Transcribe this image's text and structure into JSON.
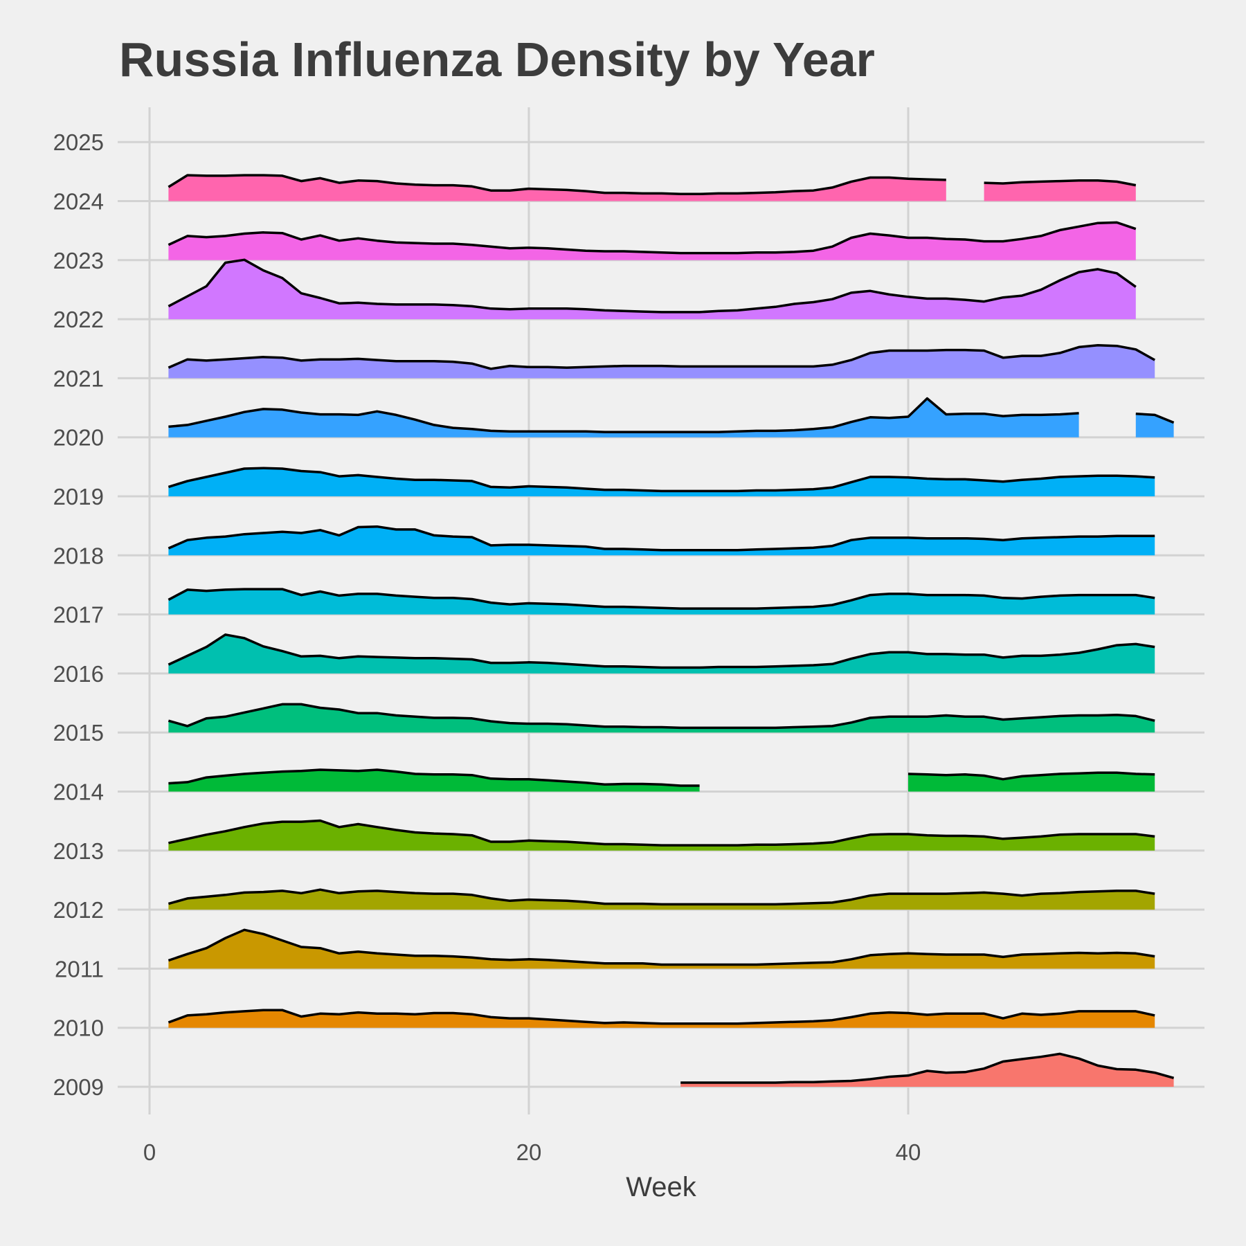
{
  "chart_data": {
    "type": "area",
    "title": "Russia Influenza Density by Year",
    "xlabel": "Week",
    "ylabel": "",
    "xlim": [
      -1,
      56.5
    ],
    "x_ticks": [
      "0",
      "20",
      "40"
    ],
    "x_tick_values": [
      0,
      20,
      40
    ],
    "y_categories": [
      "2009",
      "2010",
      "2011",
      "2012",
      "2013",
      "2014",
      "2015",
      "2016",
      "2017",
      "2018",
      "2019",
      "2020",
      "2021",
      "2022",
      "2023",
      "2024",
      "2025"
    ],
    "grid": true,
    "legend": "none",
    "series": [
      {
        "name": "2009",
        "color": "#F8766D",
        "start": 28,
        "values": [
          0.07,
          0.07,
          0.07,
          0.07,
          0.07,
          0.07,
          0.08,
          0.08,
          0.09,
          0.1,
          0.13,
          0.17,
          0.19,
          0.27,
          0.24,
          0.25,
          0.31,
          0.43,
          0.47,
          0.51,
          0.56,
          0.48,
          0.36,
          0.3,
          0.29,
          0.24,
          0.15
        ]
      },
      {
        "name": "2010",
        "color": "#E58700",
        "start": 1,
        "values": [
          0.09,
          0.21,
          0.23,
          0.26,
          0.28,
          0.3,
          0.3,
          0.19,
          0.24,
          0.23,
          0.26,
          0.24,
          0.24,
          0.23,
          0.25,
          0.25,
          0.23,
          0.18,
          0.16,
          0.16,
          0.14,
          0.12,
          0.1,
          0.08,
          0.09,
          0.08,
          0.07,
          0.07,
          0.07,
          0.07,
          0.07,
          0.08,
          0.09,
          0.1,
          0.11,
          0.13,
          0.18,
          0.24,
          0.26,
          0.25,
          0.22,
          0.24,
          0.24,
          0.24,
          0.16,
          0.24,
          0.22,
          0.24,
          0.28,
          0.28,
          0.28,
          0.28,
          0.21
        ]
      },
      {
        "name": "2011",
        "color": "#C99800",
        "start": 1,
        "values": [
          0.14,
          0.25,
          0.35,
          0.52,
          0.66,
          0.59,
          0.48,
          0.37,
          0.35,
          0.26,
          0.29,
          0.26,
          0.24,
          0.22,
          0.22,
          0.21,
          0.19,
          0.16,
          0.15,
          0.16,
          0.15,
          0.13,
          0.11,
          0.09,
          0.09,
          0.09,
          0.07,
          0.07,
          0.07,
          0.07,
          0.07,
          0.07,
          0.08,
          0.09,
          0.1,
          0.11,
          0.16,
          0.23,
          0.25,
          0.26,
          0.25,
          0.24,
          0.24,
          0.24,
          0.2,
          0.24,
          0.25,
          0.26,
          0.27,
          0.26,
          0.27,
          0.26,
          0.21
        ]
      },
      {
        "name": "2012",
        "color": "#A3A500",
        "start": 1,
        "values": [
          0.1,
          0.19,
          0.22,
          0.25,
          0.29,
          0.3,
          0.32,
          0.28,
          0.34,
          0.28,
          0.31,
          0.32,
          0.3,
          0.28,
          0.27,
          0.27,
          0.25,
          0.19,
          0.15,
          0.17,
          0.16,
          0.15,
          0.13,
          0.1,
          0.1,
          0.1,
          0.09,
          0.09,
          0.09,
          0.09,
          0.09,
          0.09,
          0.09,
          0.1,
          0.11,
          0.12,
          0.17,
          0.24,
          0.27,
          0.27,
          0.27,
          0.27,
          0.28,
          0.29,
          0.27,
          0.24,
          0.27,
          0.28,
          0.3,
          0.31,
          0.32,
          0.32,
          0.27
        ]
      },
      {
        "name": "2013",
        "color": "#6BB100",
        "start": 1,
        "values": [
          0.13,
          0.2,
          0.27,
          0.33,
          0.4,
          0.46,
          0.49,
          0.49,
          0.51,
          0.4,
          0.45,
          0.4,
          0.35,
          0.31,
          0.29,
          0.28,
          0.26,
          0.15,
          0.15,
          0.17,
          0.16,
          0.15,
          0.13,
          0.11,
          0.11,
          0.1,
          0.09,
          0.09,
          0.09,
          0.09,
          0.09,
          0.1,
          0.1,
          0.11,
          0.12,
          0.14,
          0.21,
          0.27,
          0.28,
          0.28,
          0.26,
          0.25,
          0.25,
          0.24,
          0.2,
          0.22,
          0.24,
          0.27,
          0.28,
          0.28,
          0.28,
          0.28,
          0.24
        ]
      },
      {
        "name": "2014",
        "color": "#00BA38",
        "start": 1,
        "values": [
          0.14,
          0.16,
          0.24,
          0.27,
          0.3,
          0.32,
          0.34,
          0.35,
          0.37,
          0.36,
          0.35,
          0.37,
          0.34,
          0.3,
          0.29,
          0.29,
          0.28,
          0.22,
          0.21,
          0.21,
          0.19,
          0.17,
          0.15,
          0.12,
          0.13,
          0.13,
          0.12,
          0.1,
          0.1,
          null,
          null,
          null,
          null,
          null,
          null,
          null,
          null,
          null,
          null,
          0.3,
          0.29,
          0.28,
          0.29,
          0.27,
          0.21,
          0.26,
          0.28,
          0.3,
          0.31,
          0.32,
          0.32,
          0.3,
          0.29
        ]
      },
      {
        "name": "2015",
        "color": "#00BF7D",
        "start": 1,
        "values": [
          0.2,
          0.11,
          0.24,
          0.27,
          0.34,
          0.41,
          0.48,
          0.48,
          0.42,
          0.39,
          0.33,
          0.33,
          0.29,
          0.27,
          0.25,
          0.25,
          0.24,
          0.19,
          0.16,
          0.15,
          0.15,
          0.14,
          0.12,
          0.1,
          0.1,
          0.09,
          0.09,
          0.08,
          0.08,
          0.08,
          0.08,
          0.08,
          0.08,
          0.09,
          0.1,
          0.11,
          0.17,
          0.25,
          0.27,
          0.27,
          0.27,
          0.29,
          0.27,
          0.27,
          0.22,
          0.24,
          0.26,
          0.28,
          0.29,
          0.29,
          0.3,
          0.28,
          0.2
        ]
      },
      {
        "name": "2016",
        "color": "#00C0AF",
        "start": 1,
        "values": [
          0.15,
          0.3,
          0.45,
          0.66,
          0.6,
          0.46,
          0.38,
          0.29,
          0.3,
          0.26,
          0.29,
          0.28,
          0.27,
          0.26,
          0.26,
          0.25,
          0.24,
          0.18,
          0.18,
          0.19,
          0.18,
          0.16,
          0.14,
          0.12,
          0.12,
          0.11,
          0.1,
          0.1,
          0.1,
          0.11,
          0.11,
          0.11,
          0.12,
          0.13,
          0.14,
          0.16,
          0.25,
          0.33,
          0.36,
          0.36,
          0.33,
          0.33,
          0.32,
          0.32,
          0.27,
          0.3,
          0.3,
          0.32,
          0.35,
          0.41,
          0.48,
          0.5,
          0.45
        ]
      },
      {
        "name": "2017",
        "color": "#00BCD8",
        "start": 1,
        "values": [
          0.25,
          0.42,
          0.4,
          0.42,
          0.43,
          0.43,
          0.43,
          0.33,
          0.39,
          0.32,
          0.35,
          0.35,
          0.32,
          0.3,
          0.28,
          0.28,
          0.26,
          0.2,
          0.17,
          0.19,
          0.18,
          0.17,
          0.15,
          0.13,
          0.13,
          0.12,
          0.11,
          0.1,
          0.1,
          0.1,
          0.1,
          0.1,
          0.11,
          0.12,
          0.13,
          0.16,
          0.24,
          0.33,
          0.35,
          0.35,
          0.33,
          0.33,
          0.33,
          0.32,
          0.28,
          0.27,
          0.3,
          0.32,
          0.33,
          0.33,
          0.33,
          0.33,
          0.28
        ]
      },
      {
        "name": "2018",
        "color": "#00B0F6",
        "start": 1,
        "values": [
          0.12,
          0.26,
          0.3,
          0.32,
          0.36,
          0.38,
          0.4,
          0.38,
          0.43,
          0.34,
          0.48,
          0.49,
          0.44,
          0.44,
          0.34,
          0.32,
          0.31,
          0.17,
          0.18,
          0.18,
          0.17,
          0.16,
          0.15,
          0.11,
          0.11,
          0.1,
          0.09,
          0.09,
          0.09,
          0.09,
          0.09,
          0.1,
          0.11,
          0.12,
          0.13,
          0.16,
          0.26,
          0.3,
          0.3,
          0.3,
          0.29,
          0.29,
          0.29,
          0.28,
          0.26,
          0.29,
          0.3,
          0.31,
          0.32,
          0.32,
          0.33,
          0.33,
          0.33
        ]
      },
      {
        "name": "2019",
        "color": "#00B0F6",
        "start": 1,
        "values": [
          0.16,
          0.26,
          0.33,
          0.4,
          0.47,
          0.48,
          0.47,
          0.43,
          0.41,
          0.34,
          0.36,
          0.33,
          0.3,
          0.28,
          0.28,
          0.27,
          0.26,
          0.16,
          0.15,
          0.17,
          0.16,
          0.15,
          0.13,
          0.11,
          0.11,
          0.1,
          0.09,
          0.09,
          0.09,
          0.09,
          0.09,
          0.1,
          0.1,
          0.11,
          0.12,
          0.15,
          0.24,
          0.33,
          0.33,
          0.32,
          0.3,
          0.29,
          0.29,
          0.27,
          0.25,
          0.28,
          0.3,
          0.33,
          0.34,
          0.35,
          0.35,
          0.34,
          0.32
        ]
      },
      {
        "name": "2020",
        "color": "#35A2FF",
        "start": 1,
        "values": [
          0.18,
          0.21,
          0.28,
          0.35,
          0.43,
          0.48,
          0.47,
          0.42,
          0.39,
          0.39,
          0.38,
          0.44,
          0.38,
          0.3,
          0.21,
          0.16,
          0.14,
          0.11,
          0.1,
          0.1,
          0.1,
          0.1,
          0.1,
          0.09,
          0.09,
          0.09,
          0.09,
          0.09,
          0.09,
          0.09,
          0.1,
          0.11,
          0.11,
          0.12,
          0.14,
          0.17,
          0.26,
          0.34,
          0.33,
          0.35,
          0.66,
          0.39,
          0.4,
          0.4,
          0.36,
          0.38,
          0.38,
          0.39,
          0.41,
          null,
          null,
          0.4,
          0.38,
          0.25
        ]
      },
      {
        "name": "2021",
        "color": "#9590FF",
        "start": 1,
        "values": [
          0.18,
          0.32,
          0.3,
          0.32,
          0.34,
          0.36,
          0.35,
          0.3,
          0.32,
          0.32,
          0.33,
          0.31,
          0.29,
          0.29,
          0.29,
          0.28,
          0.25,
          0.16,
          0.21,
          0.19,
          0.19,
          0.18,
          0.19,
          0.2,
          0.21,
          0.21,
          0.21,
          0.2,
          0.2,
          0.2,
          0.2,
          0.2,
          0.2,
          0.2,
          0.2,
          0.23,
          0.31,
          0.43,
          0.47,
          0.47,
          0.47,
          0.48,
          0.48,
          0.47,
          0.35,
          0.38,
          0.38,
          0.43,
          0.53,
          0.56,
          0.55,
          0.49,
          0.31
        ]
      },
      {
        "name": "2022",
        "color": "#D177FF",
        "start": 1,
        "values": [
          0.22,
          0.39,
          0.56,
          0.96,
          1.01,
          0.83,
          0.7,
          0.44,
          0.36,
          0.27,
          0.28,
          0.26,
          0.25,
          0.25,
          0.25,
          0.24,
          0.22,
          0.18,
          0.17,
          0.18,
          0.18,
          0.18,
          0.17,
          0.15,
          0.14,
          0.13,
          0.12,
          0.12,
          0.12,
          0.14,
          0.15,
          0.18,
          0.21,
          0.26,
          0.29,
          0.34,
          0.45,
          0.48,
          0.42,
          0.38,
          0.35,
          0.35,
          0.33,
          0.3,
          0.37,
          0.4,
          0.5,
          0.66,
          0.8,
          0.85,
          0.78,
          0.55
        ]
      },
      {
        "name": "2023",
        "color": "#F365E6",
        "start": 1,
        "values": [
          0.26,
          0.41,
          0.39,
          0.41,
          0.45,
          0.47,
          0.46,
          0.35,
          0.42,
          0.33,
          0.37,
          0.33,
          0.3,
          0.29,
          0.28,
          0.28,
          0.26,
          0.23,
          0.2,
          0.21,
          0.2,
          0.18,
          0.16,
          0.15,
          0.15,
          0.14,
          0.13,
          0.12,
          0.12,
          0.12,
          0.12,
          0.13,
          0.13,
          0.14,
          0.16,
          0.23,
          0.38,
          0.45,
          0.42,
          0.38,
          0.38,
          0.36,
          0.35,
          0.32,
          0.32,
          0.36,
          0.41,
          0.51,
          0.57,
          0.63,
          0.64,
          0.53
        ]
      },
      {
        "name": "2024",
        "color": "#FF65AE",
        "start": 1,
        "values": [
          0.24,
          0.44,
          0.43,
          0.43,
          0.44,
          0.44,
          0.43,
          0.34,
          0.39,
          0.31,
          0.35,
          0.34,
          0.3,
          0.28,
          0.27,
          0.27,
          0.25,
          0.18,
          0.18,
          0.21,
          0.2,
          0.19,
          0.17,
          0.14,
          0.14,
          0.13,
          0.13,
          0.12,
          0.12,
          0.13,
          0.13,
          0.14,
          0.15,
          0.17,
          0.18,
          0.23,
          0.33,
          0.4,
          0.4,
          0.38,
          0.37,
          0.36,
          null,
          0.31,
          0.3,
          0.32,
          0.33,
          0.34,
          0.35,
          0.35,
          0.33,
          0.27
        ]
      }
    ]
  }
}
